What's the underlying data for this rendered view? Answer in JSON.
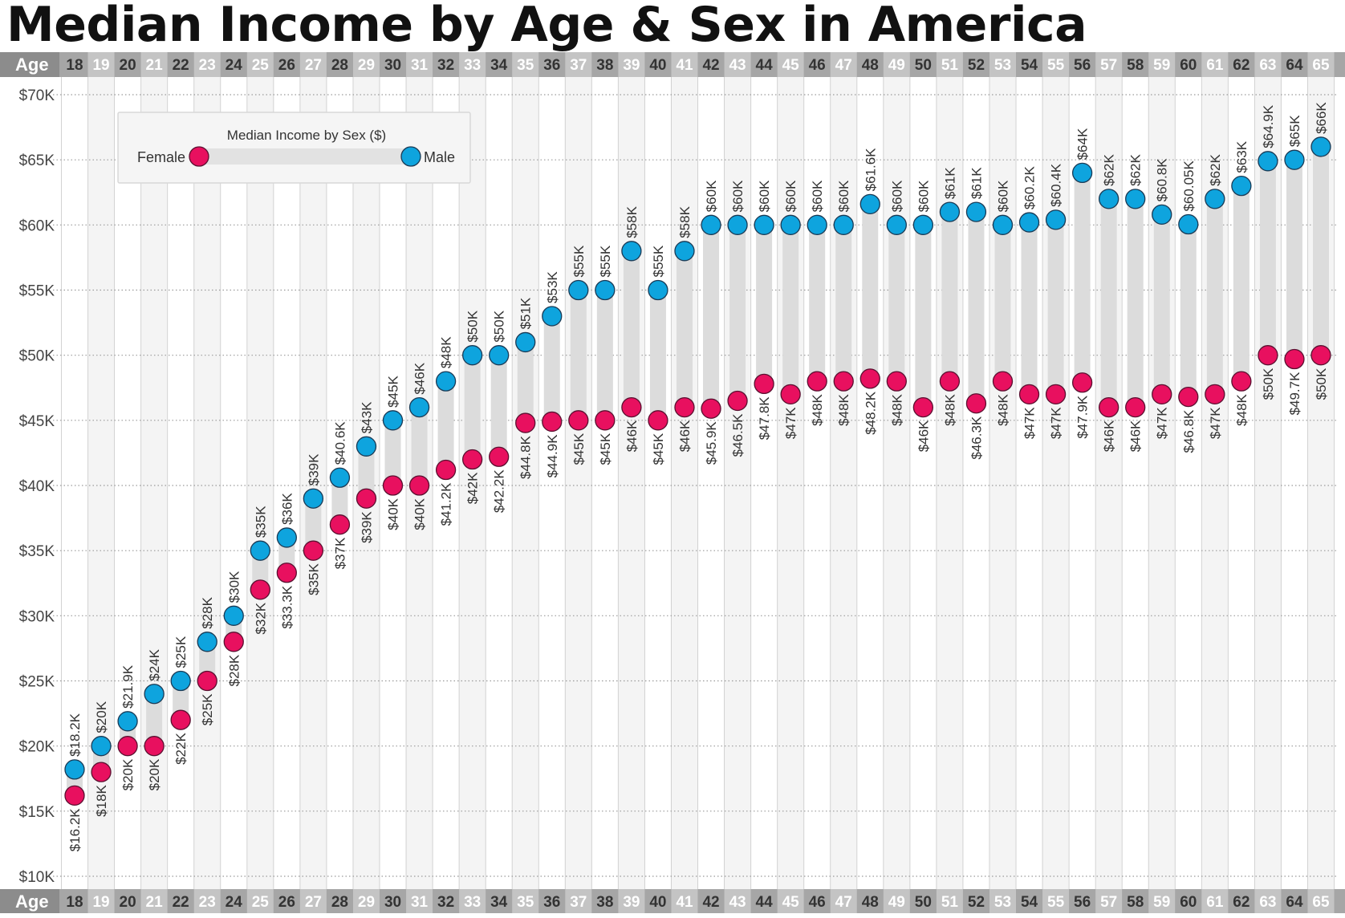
{
  "title": "Median Income by Age & Sex in America",
  "colors": {
    "female": "#e8105f",
    "male": "#0ea4de",
    "band": "#dcdcdc",
    "axis_bar": "#a6a6a6",
    "grid": "#9a9a9a"
  },
  "age_axis": {
    "label": "Age"
  },
  "legend": {
    "title": "Median Income by Sex ($)",
    "female_label": "Female",
    "male_label": "Male"
  },
  "chart_data": {
    "type": "dumbbell",
    "title": "Median Income by Age & Sex in America",
    "xlabel": "Age",
    "ylabel": "",
    "ylim": [
      10000,
      70000
    ],
    "grid": true,
    "legend_position": "top-left",
    "y_tick_values": [
      10000,
      15000,
      20000,
      25000,
      30000,
      35000,
      40000,
      45000,
      50000,
      55000,
      60000,
      65000,
      70000
    ],
    "y_tick_labels": [
      "$10K",
      "$15K",
      "$20K",
      "$25K",
      "$30K",
      "$35K",
      "$40K",
      "$45K",
      "$50K",
      "$55K",
      "$60K",
      "$65K",
      "$70K"
    ],
    "ages": [
      18,
      19,
      20,
      21,
      22,
      23,
      24,
      25,
      26,
      27,
      28,
      29,
      30,
      31,
      32,
      33,
      34,
      35,
      36,
      37,
      38,
      39,
      40,
      41,
      42,
      43,
      44,
      45,
      46,
      47,
      48,
      49,
      50,
      51,
      52,
      53,
      54,
      55,
      56,
      57,
      58,
      59,
      60,
      61,
      62,
      63,
      64,
      65
    ],
    "series": [
      {
        "name": "Female",
        "values": [
          16200,
          18000,
          20000,
          20000,
          22000,
          25000,
          28000,
          32000,
          33300,
          35000,
          37000,
          39000,
          40000,
          40000,
          41200,
          42000,
          42200,
          44800,
          44900,
          45000,
          45000,
          46000,
          45000,
          46000,
          45900,
          46500,
          47800,
          47000,
          48000,
          48000,
          48200,
          48000,
          46000,
          48000,
          46300,
          48000,
          47000,
          47000,
          47900,
          46000,
          46000,
          47000,
          46800,
          47000,
          48000,
          50000,
          49700,
          50000
        ],
        "labels": [
          "$16.2K",
          "$18K",
          "$20K",
          "$20K",
          "$22K",
          "$25K",
          "$28K",
          "$32K",
          "$33.3K",
          "$35K",
          "$37K",
          "$39K",
          "$40K",
          "$40K",
          "$41.2K",
          "$42K",
          "$42.2K",
          "$44.8K",
          "$44.9K",
          "$45K",
          "$45K",
          "$46K",
          "$45K",
          "$46K",
          "$45.9K",
          "$46.5K",
          "$47.8K",
          "$47K",
          "$48K",
          "$48K",
          "$48.2K",
          "$48K",
          "$46K",
          "$48K",
          "$46.3K",
          "$48K",
          "$47K",
          "$47K",
          "$47.9K",
          "$46K",
          "$46K",
          "$47K",
          "$46.8K",
          "$47K",
          "$48K",
          "$50K",
          "$49.7K",
          "$50K"
        ]
      },
      {
        "name": "Male",
        "values": [
          18200,
          20000,
          21900,
          24000,
          25000,
          28000,
          30000,
          35000,
          36000,
          39000,
          40600,
          43000,
          45000,
          46000,
          48000,
          50000,
          50000,
          51000,
          53000,
          55000,
          55000,
          58000,
          55000,
          58000,
          60000,
          60000,
          60000,
          60000,
          60000,
          60000,
          61600,
          60000,
          60000,
          61000,
          61000,
          60000,
          60200,
          60400,
          64000,
          62000,
          62000,
          60800,
          60050,
          62000,
          63000,
          64900,
          65000,
          66000
        ],
        "labels": [
          "$18.2K",
          "$20K",
          "$21.9K",
          "$24K",
          "$25K",
          "$28K",
          "$30K",
          "$35K",
          "$36K",
          "$39K",
          "$40.6K",
          "$43K",
          "$45K",
          "$46K",
          "$48K",
          "$50K",
          "$50K",
          "$51K",
          "$53K",
          "$55K",
          "$55K",
          "$58K",
          "$55K",
          "$58K",
          "$60K",
          "$60K",
          "$60K",
          "$60K",
          "$60K",
          "$60K",
          "$61.6K",
          "$60K",
          "$60K",
          "$61K",
          "$61K",
          "$60K",
          "$60.2K",
          "$60.4K",
          "$64K",
          "$62K",
          "$62K",
          "$60.8K",
          "$60.05K",
          "$62K",
          "$63K",
          "$64.9K",
          "$65K",
          "$66K"
        ]
      }
    ]
  }
}
